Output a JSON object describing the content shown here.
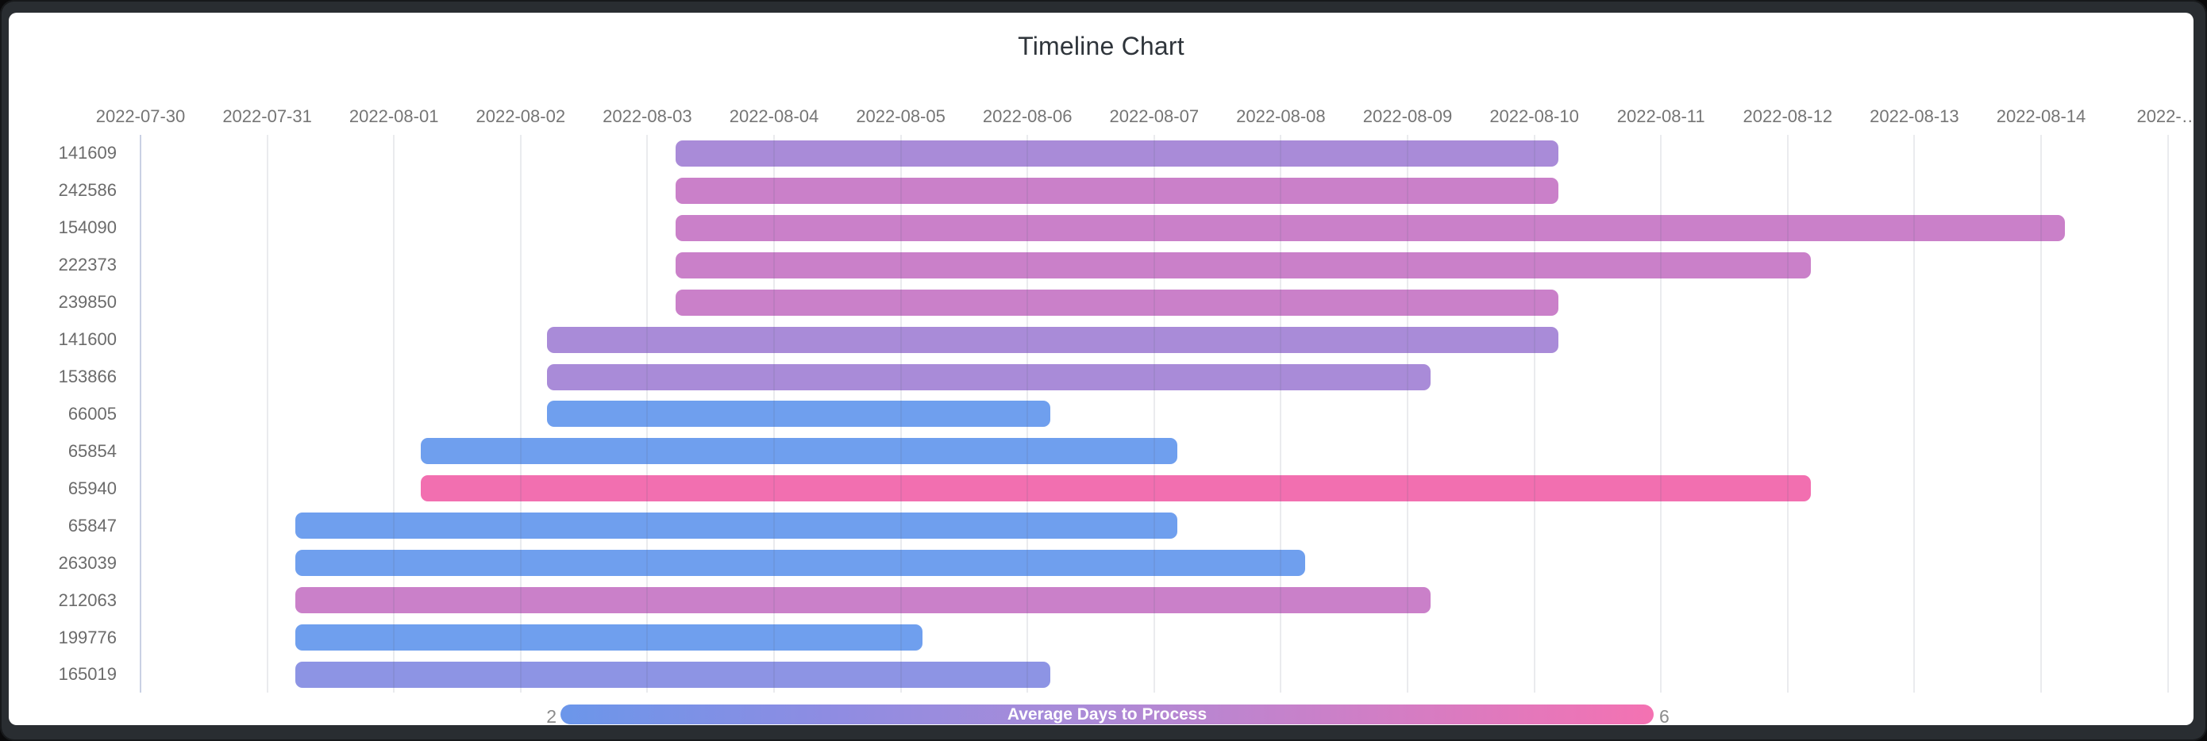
{
  "title": "Timeline Chart",
  "legend": {
    "label": "Average Days to Process",
    "min": "2",
    "max": "6"
  },
  "colors": {
    "frame": "#292d31",
    "card": "#ffffff",
    "title_text": "#2f353b",
    "tick_text": "#757575",
    "row_text": "#6b6b6b",
    "legend_value_text": "#8b8b8b",
    "legend_text": "#ffffff",
    "axis_line": "#c9d1e6",
    "gridline": "#e3e3e8",
    "scale_blue": "#6f9fee",
    "scale_periwinkle": "#8d94e4",
    "scale_purple": "#a98bd8",
    "scale_orchid": "#ca80c9",
    "scale_pink": "#f26fb0",
    "legend_gradient": [
      "#6b96ea",
      "#8f8ce2",
      "#a98bd8",
      "#ca80c9",
      "#f472b2"
    ]
  },
  "chart_data": {
    "type": "timeline",
    "title": "Timeline Chart",
    "x_axis": {
      "tick_labels": [
        "2022-07-30",
        "2022-07-31",
        "2022-08-01",
        "2022-08-02",
        "2022-08-03",
        "2022-08-04",
        "2022-08-05",
        "2022-08-06",
        "2022-08-07",
        "2022-08-08",
        "2022-08-09",
        "2022-08-10",
        "2022-08-11",
        "2022-08-12",
        "2022-08-13",
        "2022-08-14",
        "2022-…"
      ],
      "day0_date": "2022-07-30",
      "grid": true,
      "labels_position": "top"
    },
    "rows": [
      {
        "id": "141609",
        "start_day": 4.22,
        "end_day": 11.19,
        "color": "#a98bd8"
      },
      {
        "id": "242586",
        "start_day": 4.22,
        "end_day": 11.19,
        "color": "#ca80c9"
      },
      {
        "id": "154090",
        "start_day": 4.22,
        "end_day": 15.19,
        "color": "#ca80c9"
      },
      {
        "id": "222373",
        "start_day": 4.22,
        "end_day": 13.18,
        "color": "#ca80c9"
      },
      {
        "id": "239850",
        "start_day": 4.22,
        "end_day": 11.19,
        "color": "#ca80c9"
      },
      {
        "id": "141600",
        "start_day": 3.21,
        "end_day": 11.19,
        "color": "#a98bd8"
      },
      {
        "id": "153866",
        "start_day": 3.21,
        "end_day": 10.18,
        "color": "#a98bd8"
      },
      {
        "id": "66005",
        "start_day": 3.21,
        "end_day": 7.18,
        "color": "#6f9fee"
      },
      {
        "id": "65854",
        "start_day": 2.21,
        "end_day": 8.18,
        "color": "#6f9fee"
      },
      {
        "id": "65940",
        "start_day": 2.21,
        "end_day": 13.18,
        "color": "#f26fb0"
      },
      {
        "id": "65847",
        "start_day": 1.22,
        "end_day": 8.18,
        "color": "#6f9fee"
      },
      {
        "id": "263039",
        "start_day": 1.22,
        "end_day": 9.19,
        "color": "#6f9fee"
      },
      {
        "id": "212063",
        "start_day": 1.22,
        "end_day": 10.18,
        "color": "#ca80c9"
      },
      {
        "id": "199776",
        "start_day": 1.22,
        "end_day": 6.17,
        "color": "#6f9fee"
      },
      {
        "id": "165019",
        "start_day": 1.22,
        "end_day": 7.18,
        "color": "#8d94e4"
      }
    ],
    "legend_scale": {
      "label": "Average Days to Process",
      "min": 2,
      "max": 6,
      "position": "bottom"
    }
  }
}
